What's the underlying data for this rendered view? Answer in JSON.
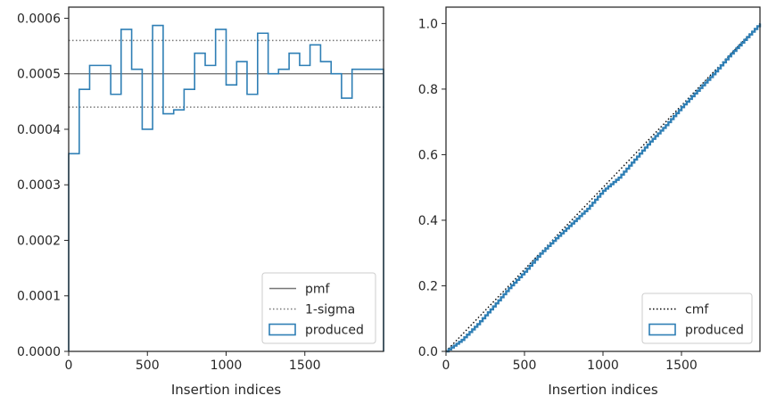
{
  "chart_data": [
    {
      "type": "line",
      "subtype": "step-histogram",
      "xlabel": "Insertion indices",
      "ylabel": "",
      "xlim": [
        0,
        2000
      ],
      "ylim": [
        0,
        0.00062
      ],
      "xticks": [
        0,
        500,
        1000,
        1500
      ],
      "yticks": [
        0.0,
        0.0001,
        0.0002,
        0.0003,
        0.0004,
        0.0005,
        0.0006
      ],
      "ytick_labels": [
        "0.0000",
        "0.0001",
        "0.0002",
        "0.0003",
        "0.0004",
        "0.0005",
        "0.0006"
      ],
      "xtick_labels": [
        "0",
        "500",
        "1000",
        "1500"
      ],
      "legend_position": "lower-right",
      "hlines": [
        {
          "name": "pmf",
          "value": 0.0005,
          "style": "solid",
          "color": "#777777"
        },
        {
          "name": "1-sigma",
          "value": 0.00056,
          "style": "dotted",
          "color": "#777777"
        },
        {
          "name": "1-sigma",
          "value": 0.00044,
          "style": "dotted",
          "color": "#777777"
        }
      ],
      "series": [
        {
          "name": "produced",
          "color": "#2f7fb5",
          "bin_edges": [
            0,
            67,
            133,
            267,
            333,
            400,
            467,
            533,
            600,
            667,
            733,
            800,
            867,
            933,
            1000,
            1067,
            1133,
            1200,
            1267,
            1333,
            1400,
            1467,
            1533,
            1600,
            1667,
            1733,
            1800,
            1867,
            1933,
            2000
          ],
          "values": [
            0.000356,
            0.000472,
            0.000515,
            0.000463,
            0.00058,
            0.000508,
            0.0004,
            0.000587,
            0.000428,
            0.000435,
            0.000472,
            0.000537,
            0.000515,
            0.00058,
            0.00048,
            0.000522,
            0.000463,
            0.000573,
            0.0005,
            0.000508,
            0.000537,
            0.000515,
            0.000552,
            0.000522,
            0.0005,
            0.000456,
            0.000508,
            0.000508,
            0.000508
          ]
        }
      ]
    },
    {
      "type": "line",
      "xlabel": "Insertion indices",
      "ylabel": "",
      "xlim": [
        0,
        2000
      ],
      "ylim": [
        0,
        1.05
      ],
      "xticks": [
        0,
        500,
        1000,
        1500
      ],
      "xtick_labels": [
        "0",
        "500",
        "1000",
        "1500"
      ],
      "yticks": [
        0.0,
        0.2,
        0.4,
        0.6,
        0.8,
        1.0
      ],
      "ytick_labels": [
        "0.0",
        "0.2",
        "0.4",
        "0.6",
        "0.8",
        "1.0"
      ],
      "legend_position": "lower-right",
      "series": [
        {
          "name": "cmf",
          "style": "dotted",
          "color": "#000000",
          "x": [
            0,
            2000
          ],
          "y": [
            0,
            1.0
          ]
        },
        {
          "name": "produced",
          "style": "step",
          "color": "#2f7fb5",
          "x": [
            0,
            100,
            200,
            300,
            400,
            500,
            600,
            700,
            800,
            900,
            1000,
            1100,
            1200,
            1300,
            1400,
            1500,
            1600,
            1700,
            1800,
            1900,
            2000
          ],
          "y": [
            0.0,
            0.035,
            0.083,
            0.137,
            0.193,
            0.243,
            0.298,
            0.345,
            0.39,
            0.435,
            0.49,
            0.53,
            0.585,
            0.64,
            0.69,
            0.745,
            0.795,
            0.845,
            0.9,
            0.95,
            1.0
          ]
        }
      ]
    }
  ]
}
